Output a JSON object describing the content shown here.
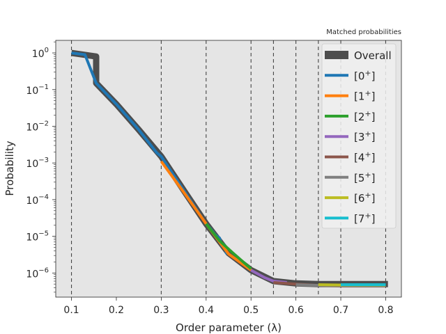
{
  "chart_data": {
    "type": "line",
    "title": "Matched probabilities",
    "xlabel": "Order parameter (λ)",
    "ylabel": "Probability",
    "y_scale": "log",
    "xlim": [
      0.065,
      0.835
    ],
    "ylim": [
      2.2e-07,
      2.2
    ],
    "x_ticks": [
      0.1,
      0.2,
      0.3,
      0.4,
      0.5,
      0.6,
      0.7,
      0.8
    ],
    "x_tick_labels": [
      "0.1",
      "0.2",
      "0.3",
      "0.4",
      "0.5",
      "0.6",
      "0.7",
      "0.8"
    ],
    "y_ticks": [
      1e-06,
      1e-05,
      0.0001,
      0.001,
      0.01,
      0.1,
      1
    ],
    "y_tick_labels": [
      {
        "base": "10",
        "exp": "−6"
      },
      {
        "base": "10",
        "exp": "−5"
      },
      {
        "base": "10",
        "exp": "−4"
      },
      {
        "base": "10",
        "exp": "−3"
      },
      {
        "base": "10",
        "exp": "−2"
      },
      {
        "base": "10",
        "exp": "−1"
      },
      {
        "base": "10",
        "exp": "0"
      }
    ],
    "interface_lines": [
      0.1,
      0.3,
      0.4,
      0.5,
      0.55,
      0.6,
      0.65,
      0.7,
      0.8
    ],
    "grid": false,
    "background": "#e5e5e5",
    "legend_position": "upper right",
    "series": [
      {
        "name": "Overall",
        "color": "#4d4d4d",
        "width": 9,
        "x": [
          0.1,
          0.155,
          0.155,
          0.2,
          0.25,
          0.3,
          0.35,
          0.4,
          0.45,
          0.5,
          0.55,
          0.6,
          0.65,
          0.7,
          0.75,
          0.805
        ],
        "y": [
          1.0,
          0.8,
          0.15,
          0.04,
          0.008,
          0.0015,
          0.00018,
          2.2e-05,
          3.5e-06,
          1.2e-06,
          6e-07,
          5.2e-07,
          5e-07,
          5e-07,
          5e-07,
          5e-07
        ]
      },
      {
        "name": "[0$^+$]",
        "label_base": "[0",
        "label_sup": "+",
        "label_end": "]",
        "color": "#1f77b4",
        "width": 4,
        "x": [
          0.1,
          0.13,
          0.155,
          0.2,
          0.25,
          0.29,
          0.3,
          0.35,
          0.4,
          0.41,
          0.42,
          0.43,
          0.435,
          0.44,
          0.445,
          0.45
        ],
        "y": [
          1.0,
          0.9,
          0.15,
          0.04,
          0.008,
          0.0019,
          0.0015,
          0.00018,
          2.2e-05,
          1.6e-05,
          1.1e-05,
          9e-06,
          5.5e-06,
          6e-06,
          3.5e-06,
          3.5e-06
        ]
      },
      {
        "name": "[1$^+$]",
        "label_base": "[1",
        "label_sup": "+",
        "label_end": "]",
        "color": "#ff7f0e",
        "width": 4,
        "x": [
          0.3,
          0.35,
          0.4,
          0.45,
          0.5
        ],
        "y": [
          0.0011,
          0.00016,
          2.2e-05,
          3.3e-06,
          1.2e-06
        ]
      },
      {
        "name": "[2$^+$]",
        "label_base": "[2",
        "label_sup": "+",
        "label_end": "]",
        "color": "#2ca02c",
        "width": 4,
        "x": [
          0.4,
          0.43,
          0.46,
          0.5
        ],
        "y": [
          2.2e-05,
          7.5e-06,
          3.5e-06,
          1.3e-06
        ]
      },
      {
        "name": "[3$^+$]",
        "label_base": "[3",
        "label_sup": "+",
        "label_end": "]",
        "color": "#9467bd",
        "width": 4,
        "x": [
          0.5,
          0.53,
          0.55,
          0.58
        ],
        "y": [
          1.2e-06,
          7.5e-07,
          6e-07,
          5.5e-07
        ]
      },
      {
        "name": "[4$^+$]",
        "label_base": "[4",
        "label_sup": "+",
        "label_end": "]",
        "color": "#8c564b",
        "width": 4,
        "x": [
          0.55,
          0.6,
          0.65,
          0.7,
          0.8
        ],
        "y": [
          5.5e-07,
          5e-07,
          4.6e-07,
          4.4e-07,
          4.4e-07
        ]
      },
      {
        "name": "[5$^+$]",
        "label_base": "[5",
        "label_sup": "+",
        "label_end": "]",
        "color": "#7f7f7f",
        "width": 4,
        "x": [
          0.6,
          0.65,
          0.7,
          0.8
        ],
        "y": [
          4.8e-07,
          4.6e-07,
          4.5e-07,
          4.5e-07
        ]
      },
      {
        "name": "[6$^+$]",
        "label_base": "[6",
        "label_sup": "+",
        "label_end": "]",
        "color": "#bcbd22",
        "width": 4,
        "x": [
          0.65,
          0.7,
          0.8
        ],
        "y": [
          4.8e-07,
          4.7e-07,
          4.7e-07
        ]
      },
      {
        "name": "[7$^+$]",
        "label_base": "[7",
        "label_sup": "+",
        "label_end": "]",
        "color": "#17becf",
        "width": 4,
        "x": [
          0.7,
          0.75,
          0.8
        ],
        "y": [
          4.8e-07,
          4.8e-07,
          4.8e-07
        ]
      }
    ]
  }
}
